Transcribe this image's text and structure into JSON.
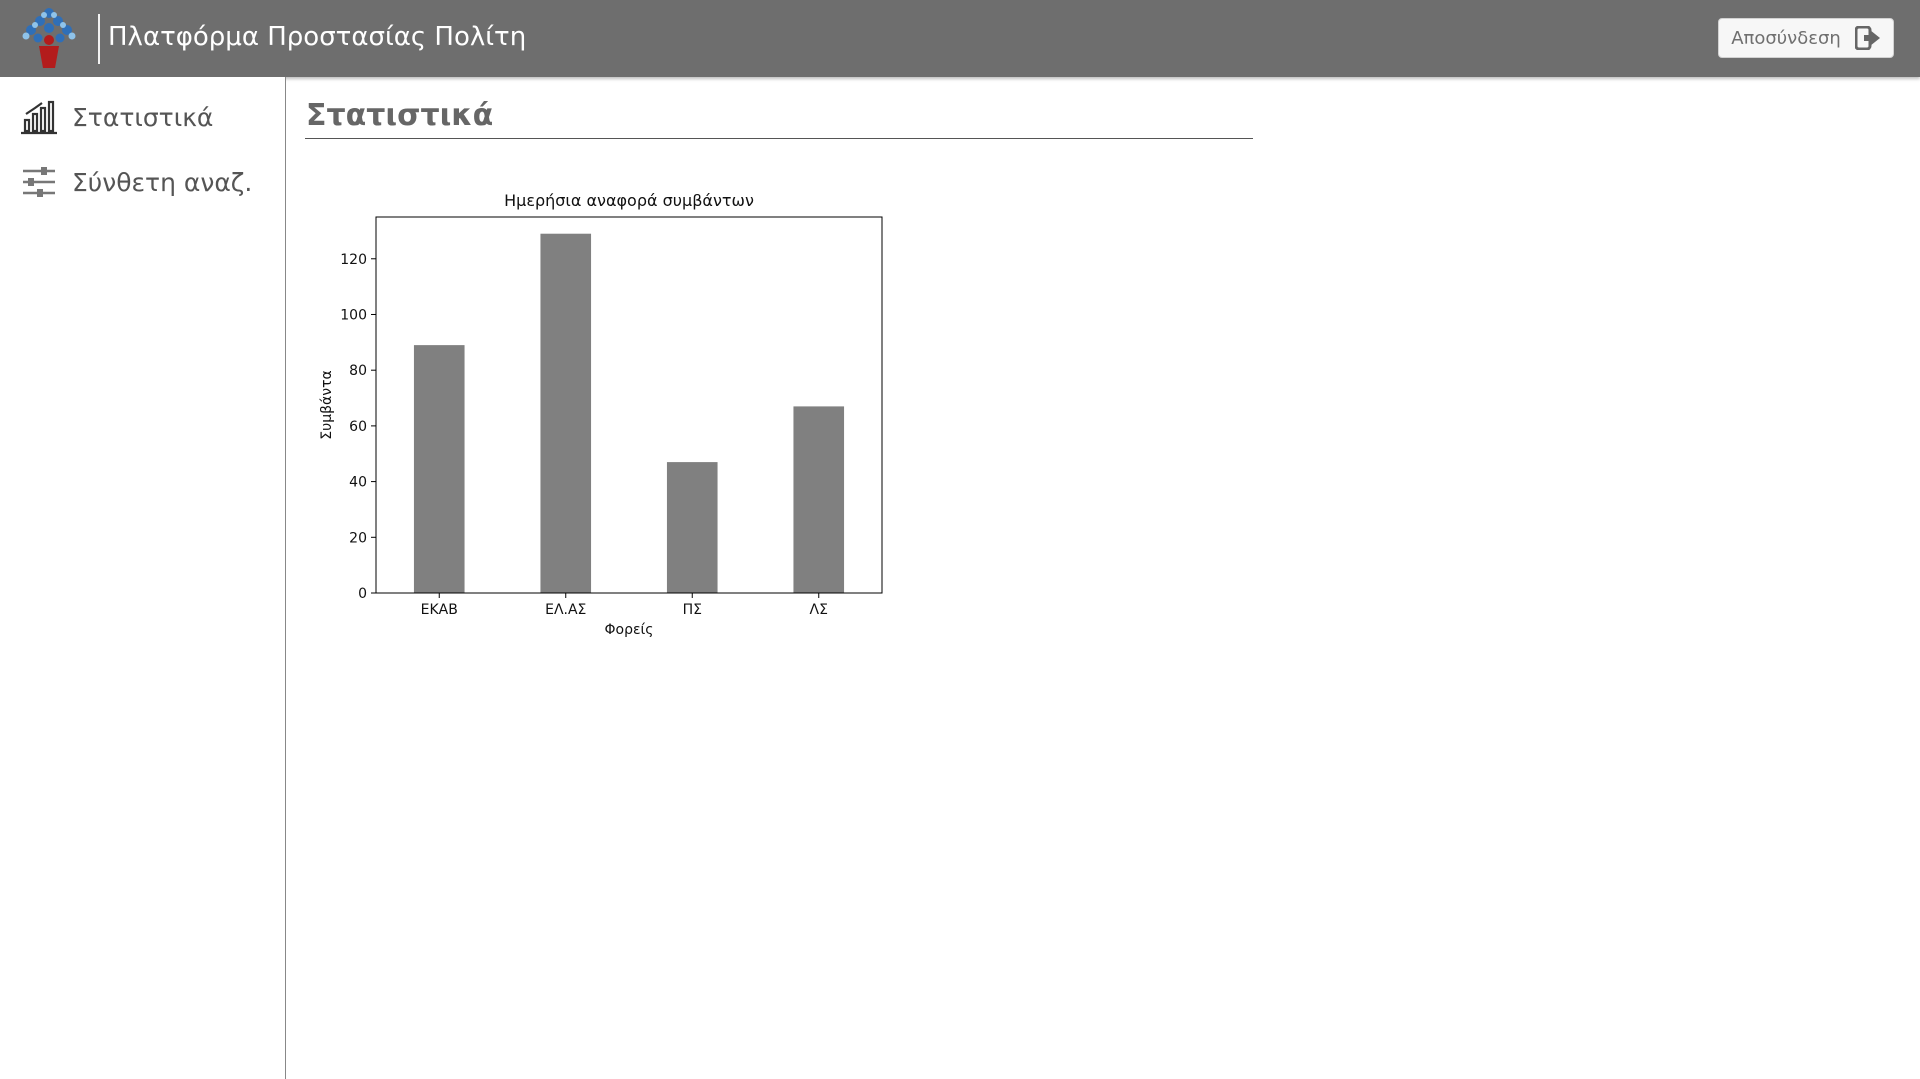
{
  "header": {
    "title": "Πλατφόρμα Προστασίας Πολίτη",
    "logout_label": "Αποσύνδεση"
  },
  "sidebar": {
    "items": [
      {
        "label": "Στατιστικά",
        "icon": "chart-icon"
      },
      {
        "label": "Σύνθετη αναζ.",
        "icon": "sliders-icon"
      }
    ]
  },
  "main": {
    "title": "Στατιστικά"
  },
  "chart_data": {
    "type": "bar",
    "title": "Ημερήσια αναφορά συμβάντων",
    "xlabel": "Φορείς",
    "ylabel": "Συμβάντα",
    "categories": [
      "ΕΚΑΒ",
      "ΕΛ.ΑΣ",
      "ΠΣ",
      "ΛΣ"
    ],
    "values": [
      89,
      129,
      47,
      67
    ],
    "ylim": [
      0,
      135
    ],
    "yticks": [
      0,
      20,
      40,
      60,
      80,
      100,
      120
    ],
    "grid": false,
    "bar_color": "#808080"
  }
}
